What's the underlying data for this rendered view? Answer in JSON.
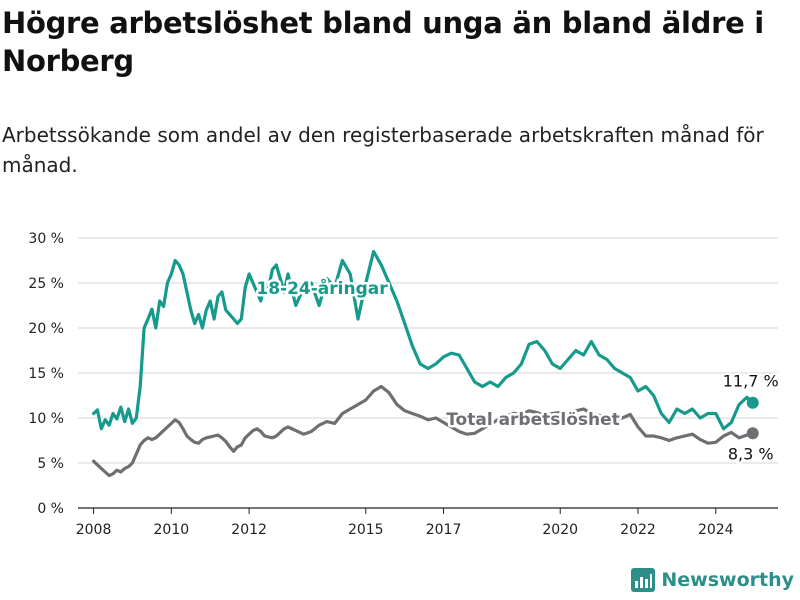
{
  "header": {
    "title": "Högre arbetslöshet bland unga än bland äldre i Norberg",
    "subtitle": "Arbetssökande som andel av den registerbaserade arbetskraften månad för månad."
  },
  "brand": {
    "name": "Newsworthy",
    "logo_icon": "bar-chart-logo-icon",
    "color": "#2e8f8a"
  },
  "chart_data": {
    "type": "line",
    "x_ticks": [
      {
        "value": 2008,
        "label": "2008"
      },
      {
        "value": 2010,
        "label": "2010"
      },
      {
        "value": 2012,
        "label": "2012"
      },
      {
        "value": 2015,
        "label": "2015"
      },
      {
        "value": 2017,
        "label": "2017"
      },
      {
        "value": 2020,
        "label": "2020"
      },
      {
        "value": 2022,
        "label": "2022"
      },
      {
        "value": 2024,
        "label": "2024"
      }
    ],
    "y_ticks": [
      {
        "value": 0,
        "label": "0 %"
      },
      {
        "value": 5,
        "label": "5 %"
      },
      {
        "value": 10,
        "label": "10 %"
      },
      {
        "value": 15,
        "label": "15 %"
      },
      {
        "value": 20,
        "label": "20 %"
      },
      {
        "value": 25,
        "label": "25 %"
      },
      {
        "value": 30,
        "label": "30 %"
      }
    ],
    "ylim": [
      0,
      30
    ],
    "grid": true,
    "series": [
      {
        "name": "18-24-åringar",
        "color": "#159a8c",
        "end_label": "11,7 %",
        "x": [
          2008.0,
          2008.1,
          2008.2,
          2008.3,
          2008.4,
          2008.5,
          2008.6,
          2008.7,
          2008.8,
          2008.9,
          2009.0,
          2009.1,
          2009.2,
          2009.3,
          2009.4,
          2009.5,
          2009.6,
          2009.7,
          2009.8,
          2009.9,
          2010.0,
          2010.1,
          2010.2,
          2010.3,
          2010.4,
          2010.5,
          2010.6,
          2010.7,
          2010.8,
          2010.9,
          2011.0,
          2011.1,
          2011.2,
          2011.3,
          2011.4,
          2011.5,
          2011.6,
          2011.7,
          2011.8,
          2011.9,
          2012.0,
          2012.1,
          2012.2,
          2012.3,
          2012.4,
          2012.5,
          2012.6,
          2012.7,
          2012.8,
          2012.9,
          2013.0,
          2013.2,
          2013.4,
          2013.6,
          2013.8,
          2014.0,
          2014.2,
          2014.4,
          2014.6,
          2014.8,
          2015.0,
          2015.2,
          2015.4,
          2015.6,
          2015.8,
          2016.0,
          2016.2,
          2016.4,
          2016.6,
          2016.8,
          2017.0,
          2017.2,
          2017.4,
          2017.6,
          2017.8,
          2018.0,
          2018.2,
          2018.4,
          2018.6,
          2018.8,
          2019.0,
          2019.2,
          2019.4,
          2019.6,
          2019.8,
          2020.0,
          2020.2,
          2020.4,
          2020.6,
          2020.8,
          2021.0,
          2021.2,
          2021.4,
          2021.6,
          2021.8,
          2022.0,
          2022.2,
          2022.4,
          2022.6,
          2022.8,
          2023.0,
          2023.2,
          2023.4,
          2023.6,
          2023.8,
          2024.0,
          2024.2,
          2024.4,
          2024.6,
          2024.8,
          2024.95
        ],
        "y": [
          10.5,
          10.9,
          8.8,
          9.8,
          9.2,
          10.5,
          9.9,
          11.2,
          9.6,
          11.0,
          9.4,
          10.0,
          13.5,
          20.0,
          21.0,
          22.1,
          20.0,
          23.0,
          22.4,
          25.0,
          26.0,
          27.5,
          27.0,
          26.0,
          24.0,
          22.0,
          20.5,
          21.5,
          20.0,
          22.0,
          23.0,
          21.0,
          23.5,
          24.0,
          22.0,
          21.5,
          21.0,
          20.5,
          21.0,
          24.5,
          26.0,
          25.0,
          24.0,
          23.0,
          25.0,
          24.5,
          26.5,
          27.0,
          25.5,
          24.0,
          26.0,
          22.5,
          24.5,
          25.0,
          22.5,
          25.5,
          24.5,
          27.5,
          26.0,
          21.0,
          25.0,
          28.5,
          27.0,
          25.0,
          23.0,
          20.5,
          18.0,
          16.0,
          15.5,
          16.0,
          16.8,
          17.2,
          17.0,
          15.5,
          14.0,
          13.5,
          14.0,
          13.5,
          14.5,
          15.0,
          16.0,
          18.2,
          18.5,
          17.5,
          16.0,
          15.5,
          16.5,
          17.5,
          17.0,
          18.5,
          17.0,
          16.5,
          15.5,
          15.0,
          14.5,
          13.0,
          13.5,
          12.5,
          10.5,
          9.5,
          11.0,
          10.5,
          11.0,
          10.0,
          10.5,
          10.5,
          8.8,
          9.5,
          11.5,
          12.3,
          11.7
        ]
      },
      {
        "name": "Total arbetslöshet",
        "color": "#6e6e73",
        "end_label": "8,3 %",
        "x": [
          2008.0,
          2008.1,
          2008.2,
          2008.3,
          2008.4,
          2008.5,
          2008.6,
          2008.7,
          2008.8,
          2008.9,
          2009.0,
          2009.1,
          2009.2,
          2009.3,
          2009.4,
          2009.5,
          2009.6,
          2009.7,
          2009.8,
          2009.9,
          2010.0,
          2010.1,
          2010.2,
          2010.3,
          2010.4,
          2010.5,
          2010.6,
          2010.7,
          2010.8,
          2010.9,
          2011.0,
          2011.1,
          2011.2,
          2011.3,
          2011.4,
          2011.5,
          2011.6,
          2011.7,
          2011.8,
          2011.9,
          2012.0,
          2012.1,
          2012.2,
          2012.3,
          2012.4,
          2012.5,
          2012.6,
          2012.7,
          2012.8,
          2012.9,
          2013.0,
          2013.2,
          2013.4,
          2013.6,
          2013.8,
          2014.0,
          2014.2,
          2014.4,
          2014.6,
          2014.8,
          2015.0,
          2015.2,
          2015.4,
          2015.6,
          2015.8,
          2016.0,
          2016.2,
          2016.4,
          2016.6,
          2016.8,
          2017.0,
          2017.2,
          2017.4,
          2017.6,
          2017.8,
          2018.0,
          2018.2,
          2018.4,
          2018.6,
          2018.8,
          2019.0,
          2019.2,
          2019.4,
          2019.6,
          2019.8,
          2020.0,
          2020.2,
          2020.4,
          2020.6,
          2020.8,
          2021.0,
          2021.2,
          2021.4,
          2021.6,
          2021.8,
          2022.0,
          2022.2,
          2022.4,
          2022.6,
          2022.8,
          2023.0,
          2023.2,
          2023.4,
          2023.6,
          2023.8,
          2024.0,
          2024.2,
          2024.4,
          2024.6,
          2024.8,
          2024.95
        ],
        "y": [
          5.2,
          4.8,
          4.4,
          4.0,
          3.6,
          3.8,
          4.2,
          4.0,
          4.4,
          4.6,
          5.0,
          6.0,
          7.0,
          7.5,
          7.8,
          7.6,
          7.8,
          8.2,
          8.6,
          9.0,
          9.4,
          9.8,
          9.5,
          8.8,
          8.0,
          7.6,
          7.3,
          7.2,
          7.6,
          7.8,
          7.9,
          8.0,
          8.1,
          7.8,
          7.4,
          6.8,
          6.3,
          6.8,
          7.0,
          7.8,
          8.2,
          8.6,
          8.8,
          8.5,
          8.0,
          7.9,
          7.8,
          8.0,
          8.4,
          8.8,
          9.0,
          8.6,
          8.2,
          8.5,
          9.2,
          9.6,
          9.4,
          10.5,
          11.0,
          11.5,
          12.0,
          13.0,
          13.5,
          12.8,
          11.5,
          10.8,
          10.5,
          10.2,
          9.8,
          10.0,
          9.5,
          9.0,
          8.5,
          8.2,
          8.3,
          8.8,
          9.3,
          9.8,
          10.2,
          10.5,
          10.4,
          10.8,
          10.6,
          10.3,
          10.5,
          10.6,
          10.2,
          10.8,
          11.0,
          10.5,
          10.3,
          10.0,
          9.8,
          10.0,
          10.4,
          9.0,
          8.0,
          8.0,
          7.8,
          7.5,
          7.8,
          8.0,
          8.2,
          7.6,
          7.2,
          7.3,
          8.0,
          8.4,
          7.8,
          8.1,
          8.3
        ]
      }
    ]
  }
}
